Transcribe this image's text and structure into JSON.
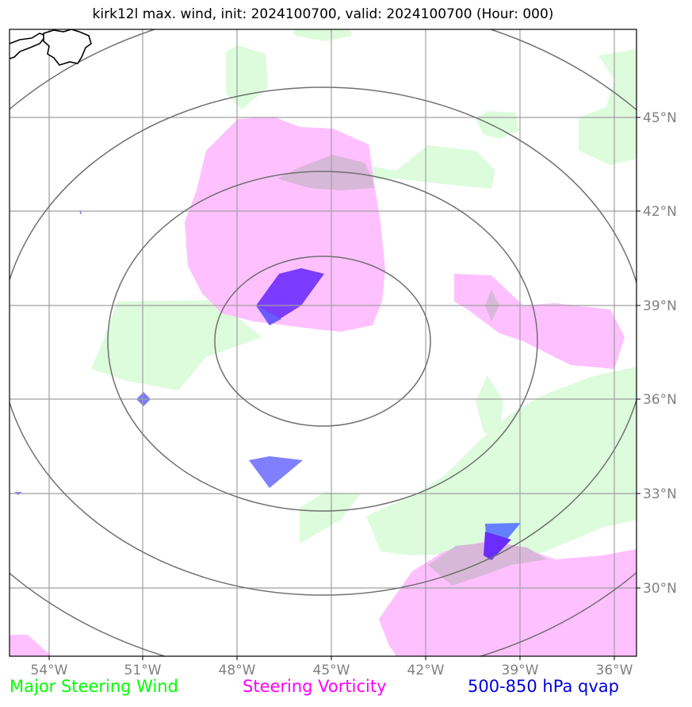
{
  "title": "kirk12l max. wind, init: 2024100700, valid: 2024100700 (Hour: 000)",
  "map": {
    "lon_ticks": [
      "54°W",
      "51°W",
      "48°W",
      "45°W",
      "42°W",
      "39°W",
      "36°W"
    ],
    "lat_ticks": [
      "45°N",
      "42°N",
      "39°N",
      "36°N",
      "33°N",
      "30°N"
    ],
    "colors": {
      "steering_wind_fill": "#dcfcdc",
      "vorticity_fill": "#ffc0ff",
      "overlap_fill": "#d8b8d8",
      "qvap_fill": "#6a5cff",
      "range_ring": "#707070",
      "gridline": "#a0a0a0"
    }
  },
  "legend": {
    "wind": {
      "label": "Major Steering Wind",
      "color": "#00ff00"
    },
    "vorticity": {
      "label": "Steering Vorticity",
      "color": "#ff00ff"
    },
    "qvap": {
      "label": "500-850 hPa qvap",
      "color": "#0000dd"
    }
  }
}
